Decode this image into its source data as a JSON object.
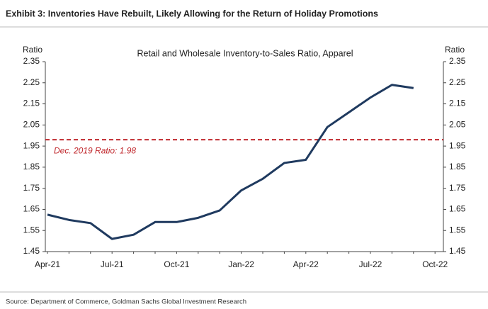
{
  "chart_data": {
    "type": "line",
    "title": "Exhibit 3: Inventories Have Rebuilt, Likely Allowing for the Return of Holiday Promotions",
    "subtitle": "Retail and Wholesale Inventory-to-Sales Ratio, Apparel",
    "y_label": "Ratio",
    "y2_label": "Ratio",
    "source": "Source: Department of Commerce, Goldman Sachs Global Investment Research",
    "categories": [
      "Apr-21",
      null,
      null,
      "Jul-21",
      null,
      null,
      "Oct-21",
      null,
      null,
      "Jan-22",
      null,
      null,
      "Apr-22",
      null,
      null,
      "Jul-22",
      null,
      null,
      "Oct-22"
    ],
    "series": [
      {
        "name": "Inventory-to-Sales Ratio",
        "color": "#1f3a5f",
        "values": [
          1.625,
          1.6,
          1.585,
          1.51,
          1.53,
          1.59,
          1.59,
          1.61,
          1.645,
          1.74,
          1.795,
          1.87,
          1.885,
          2.04,
          2.11,
          2.18,
          2.24,
          2.225,
          null
        ]
      }
    ],
    "reference_line": {
      "value": 1.98,
      "label": "Dec. 2019 Ratio: 1.98",
      "color": "#c0282d"
    },
    "ylim": [
      1.45,
      2.35
    ],
    "yticks": [
      1.45,
      1.55,
      1.65,
      1.75,
      1.85,
      1.95,
      2.05,
      2.15,
      2.25,
      2.35
    ],
    "grid": false
  }
}
